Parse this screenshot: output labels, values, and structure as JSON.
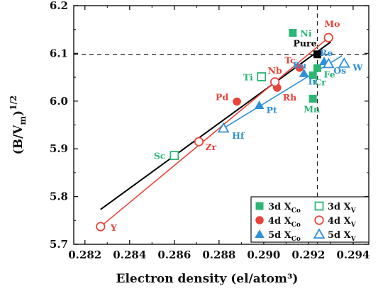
{
  "chart_data": {
    "type": "scatter",
    "xlabel": "Electron density (el/atom³)",
    "ylabel_main": "(B/V",
    "ylabel_sub": "m",
    "ylabel_close": ")",
    "ylabel_sup": "1/2",
    "xlim": [
      0.2815,
      0.2947
    ],
    "ylim": [
      5.7,
      6.2
    ],
    "x_ticks": [
      0.282,
      0.284,
      0.286,
      0.288,
      0.29,
      0.292,
      0.294
    ],
    "x_tick_labels": [
      "0.282",
      "0.284",
      "0.286",
      "0.288",
      "0.290",
      "0.292",
      "0.294"
    ],
    "y_ticks": [
      5.7,
      5.8,
      5.9,
      6.0,
      6.1,
      6.2
    ],
    "y_tick_labels": [
      "5.7",
      "5.8",
      "5.9",
      "6.0",
      "6.1",
      "6.2"
    ],
    "reference_lines": {
      "x": 0.2924,
      "y": 6.098
    },
    "colors": {
      "green": "#2bb673",
      "red": "#e8443a",
      "blue": "#2f8fd8",
      "black": "#000000"
    },
    "fit_lines": [
      {
        "color": "black",
        "points": [
          [
            0.2827,
            5.773
          ],
          [
            0.293,
            6.124
          ]
        ]
      },
      {
        "color": "red",
        "points": [
          [
            0.2827,
            5.737
          ],
          [
            0.2929,
            6.133
          ]
        ]
      },
      {
        "color": "blue",
        "points": [
          [
            0.2882,
            5.943
          ],
          [
            0.2935,
            6.095
          ]
        ]
      }
    ],
    "series": [
      {
        "group": "3d",
        "color": "green",
        "marker": "square",
        "filled": true,
        "points": [
          {
            "label": "Ni",
            "x": 0.2913,
            "y": 6.143
          },
          {
            "label": "Fe",
            "x": 0.2924,
            "y": 6.069
          },
          {
            "label": "Cr",
            "x": 0.2922,
            "y": 6.054
          },
          {
            "label": "Mn",
            "x": 0.2922,
            "y": 6.005
          }
        ]
      },
      {
        "group": "3d",
        "color": "green",
        "marker": "square",
        "filled": false,
        "points": [
          {
            "label": "Ti",
            "x": 0.2899,
            "y": 6.051
          },
          {
            "label": "Sc",
            "x": 0.286,
            "y": 5.886
          }
        ]
      },
      {
        "group": "4d",
        "color": "red",
        "marker": "circle",
        "filled": true,
        "points": [
          {
            "label": "Tc",
            "x": 0.2916,
            "y": 6.07
          },
          {
            "label": "Rh",
            "x": 0.2906,
            "y": 6.028
          },
          {
            "label": "Pd",
            "x": 0.2888,
            "y": 5.999
          }
        ]
      },
      {
        "group": "4d",
        "color": "red",
        "marker": "circle",
        "filled": false,
        "points": [
          {
            "label": "Mo",
            "x": 0.2929,
            "y": 6.133
          },
          {
            "label": "Nb",
            "x": 0.2905,
            "y": 6.04
          },
          {
            "label": "Zr",
            "x": 0.2871,
            "y": 5.915
          },
          {
            "label": "Y",
            "x": 0.2827,
            "y": 5.737
          }
        ]
      },
      {
        "group": "5d",
        "color": "blue",
        "marker": "triangle",
        "filled": true,
        "points": [
          {
            "label": "Re",
            "x": 0.2927,
            "y": 6.083
          },
          {
            "label": "Ir",
            "x": 0.2918,
            "y": 6.058
          },
          {
            "label": "Pt",
            "x": 0.2898,
            "y": 5.991
          }
        ]
      },
      {
        "group": "5d",
        "color": "blue",
        "marker": "triangle",
        "filled": false,
        "points": [
          {
            "label": "Os",
            "x": 0.2929,
            "y": 6.078
          },
          {
            "label": "W",
            "x": 0.2936,
            "y": 6.079
          },
          {
            "label": "Hf",
            "x": 0.2882,
            "y": 5.943
          }
        ]
      },
      {
        "group": "pure",
        "color": "black",
        "marker": "square",
        "filled": true,
        "points": [
          {
            "label": "Pure",
            "x": 0.2924,
            "y": 6.098
          }
        ]
      }
    ],
    "point_labels": [
      {
        "text": "Ni",
        "color": "green",
        "x": 0.29135,
        "y": 6.143,
        "dx": 9,
        "dy": 5
      },
      {
        "text": "Fe",
        "color": "green",
        "x": 0.2924,
        "y": 6.069,
        "dx": 9,
        "dy": 13
      },
      {
        "text": "Cr",
        "color": "green",
        "x": 0.2922,
        "y": 6.054,
        "dx": 2,
        "dy": 14
      },
      {
        "text": "Mn",
        "color": "green",
        "x": 0.2922,
        "y": 6.005,
        "dx": -13,
        "dy": 19
      },
      {
        "text": "Ti",
        "color": "green",
        "x": 0.2899,
        "y": 6.051,
        "dx": -26,
        "dy": 5
      },
      {
        "text": "Sc",
        "color": "green",
        "x": 0.286,
        "y": 5.886,
        "dx": -29,
        "dy": 5
      },
      {
        "text": "Mo",
        "color": "red",
        "x": 0.2929,
        "y": 6.133,
        "dx": -6,
        "dy": -15
      },
      {
        "text": "Tc",
        "color": "red",
        "x": 0.2916,
        "y": 6.07,
        "dx": -21,
        "dy": -6
      },
      {
        "text": "Nb",
        "color": "red",
        "x": 0.2905,
        "y": 6.04,
        "dx": -10,
        "dy": -12
      },
      {
        "text": "Rh",
        "color": "red",
        "x": 0.2906,
        "y": 6.028,
        "dx": 8,
        "dy": 18
      },
      {
        "text": "Pd",
        "color": "red",
        "x": 0.2888,
        "y": 5.999,
        "dx": -30,
        "dy": -2
      },
      {
        "text": "Zr",
        "color": "red",
        "x": 0.2871,
        "y": 5.915,
        "dx": 9,
        "dy": 12
      },
      {
        "text": "Y",
        "color": "red",
        "x": 0.2827,
        "y": 5.737,
        "dx": 14,
        "dy": 6
      },
      {
        "text": "Re",
        "color": "blue",
        "x": 0.2927,
        "y": 6.083,
        "dx": -6,
        "dy": -8
      },
      {
        "text": "Ru",
        "color": "blue",
        "x": 0.2918,
        "y": 6.058,
        "dx": -16,
        "dy": -7
      },
      {
        "text": "Ir",
        "color": "blue",
        "x": 0.2918,
        "y": 6.058,
        "dx": 6,
        "dy": 16
      },
      {
        "text": "Os",
        "color": "blue",
        "x": 0.2929,
        "y": 6.078,
        "dx": 7,
        "dy": 14
      },
      {
        "text": "W",
        "color": "blue",
        "x": 0.2936,
        "y": 6.079,
        "dx": 12,
        "dy": 10
      },
      {
        "text": "Pt",
        "color": "blue",
        "x": 0.2898,
        "y": 5.991,
        "dx": 10,
        "dy": 11
      },
      {
        "text": "Hf",
        "color": "blue",
        "x": 0.2882,
        "y": 5.943,
        "dx": 12,
        "dy": 15
      },
      {
        "text": "Pure",
        "color": "black",
        "x": 0.2924,
        "y": 6.098,
        "dx": -34,
        "dy": -11
      }
    ],
    "legend": {
      "placement": "bottom-right",
      "entries": [
        {
          "row": 0,
          "col": 0,
          "marker": "square",
          "filled": true,
          "color": "green",
          "main": "3d X",
          "sub": "Co"
        },
        {
          "row": 0,
          "col": 1,
          "marker": "square",
          "filled": false,
          "color": "green",
          "main": "3d X",
          "sub": "V"
        },
        {
          "row": 1,
          "col": 0,
          "marker": "circle",
          "filled": true,
          "color": "red",
          "main": "4d X",
          "sub": "Co"
        },
        {
          "row": 1,
          "col": 1,
          "marker": "circle",
          "filled": false,
          "color": "red",
          "main": "4d X",
          "sub": "V"
        },
        {
          "row": 2,
          "col": 0,
          "marker": "triangle",
          "filled": true,
          "color": "blue",
          "main": "5d X",
          "sub": "Co"
        },
        {
          "row": 2,
          "col": 1,
          "marker": "triangle",
          "filled": false,
          "color": "blue",
          "main": "5d X",
          "sub": "V"
        }
      ]
    }
  }
}
